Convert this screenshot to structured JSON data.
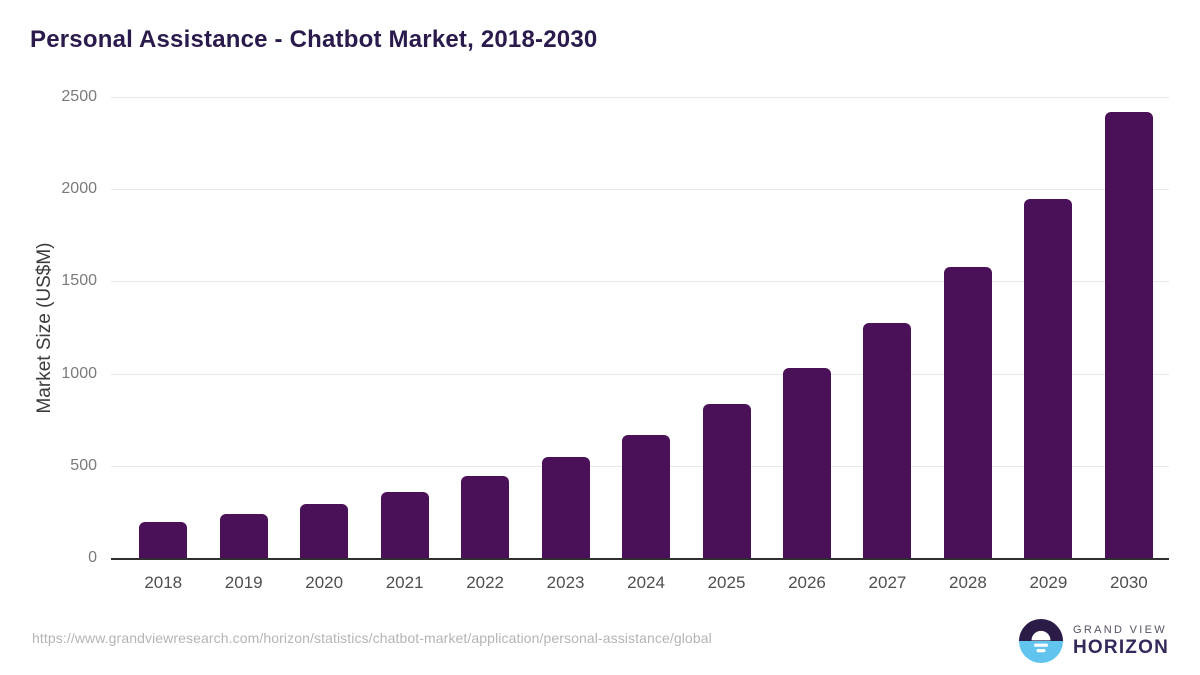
{
  "chart": {
    "title": "Personal Assistance - Chatbot Market, 2018-2030",
    "ylabel": "Market Size (US$M)",
    "colors": {
      "title": "#2b1b4d",
      "bar": "#4a1158",
      "gridline": "#e9e9e9",
      "axis_line": "#2f2f2f",
      "y_tick": "#7a7a7a",
      "x_tick": "#4f4f4f"
    }
  },
  "chart_data": {
    "type": "bar",
    "title": "Personal Assistance - Chatbot Market, 2018-2030",
    "categories": [
      "2018",
      "2019",
      "2020",
      "2021",
      "2022",
      "2023",
      "2024",
      "2025",
      "2026",
      "2027",
      "2028",
      "2029",
      "2030"
    ],
    "values": [
      196,
      240,
      295,
      360,
      445,
      548,
      668,
      836,
      1029,
      1272,
      1578,
      1948,
      2421
    ],
    "xlabel": "",
    "ylabel": "Market Size (US$M)",
    "ylim": [
      0,
      2500
    ],
    "yticks": [
      0,
      500,
      1000,
      1500,
      2000,
      2500
    ],
    "grid": "horizontal",
    "legend": "none",
    "bar_color": "#4a1158"
  },
  "footer": {
    "source_url": "https://www.grandviewresearch.com/horizon/statistics/chatbot-market/application/personal-assistance/global",
    "brand": {
      "line1": "GRAND VIEW",
      "line2": "HORIZON",
      "logo_top_color": "#2b1b47",
      "logo_bottom_color": "#61c4ee"
    }
  }
}
